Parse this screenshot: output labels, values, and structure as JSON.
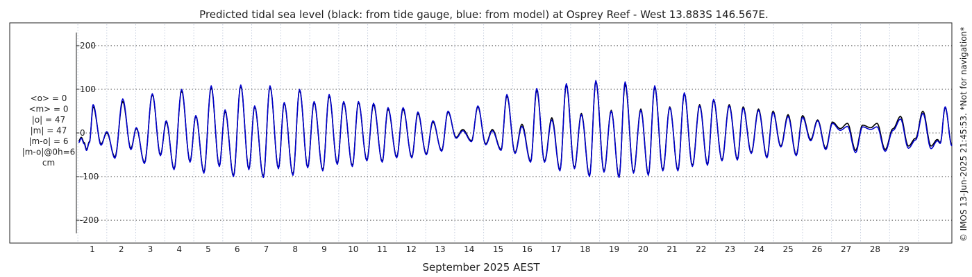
{
  "chart_data": {
    "type": "line",
    "title": "Predicted tidal sea level (black: from tide gauge, blue: from model) at Osprey Reef - West 13.883S 146.567E.",
    "xlabel": "September 2025 AEST",
    "ylabel": "",
    "x_unit": "day of September 2025",
    "xlim": [
      0.45,
      30.65
    ],
    "ylim": [
      -230,
      230
    ],
    "yticks": [
      -200,
      -100,
      0,
      100,
      200
    ],
    "xticks": [
      1,
      2,
      3,
      4,
      5,
      6,
      7,
      8,
      9,
      10,
      11,
      12,
      13,
      14,
      15,
      16,
      17,
      18,
      19,
      20,
      21,
      22,
      23,
      24,
      25,
      26,
      27,
      28,
      29
    ],
    "grid": true,
    "stats": [
      "<o> = 0",
      "<m> = 0",
      "|o| = 47",
      "|m| = 47",
      "|m-o| = 6",
      "|m-o|@0h=6",
      "cm"
    ],
    "side_note": "© IMOS 13-Jun-2025 21:45:53. *Not for navigation*",
    "series": [
      {
        "name": "black: from tide gauge",
        "color": "#000000",
        "peaks": [
          [
            0.53,
            -18
          ],
          [
            0.62,
            -10
          ],
          [
            0.72,
            -22
          ],
          [
            0.8,
            -38
          ],
          [
            0.9,
            -20
          ],
          [
            1.03,
            60
          ],
          [
            1.3,
            -25
          ],
          [
            1.5,
            0
          ],
          [
            1.78,
            -55
          ],
          [
            2.05,
            72
          ],
          [
            2.33,
            -35
          ],
          [
            2.52,
            10
          ],
          [
            2.8,
            -68
          ],
          [
            3.07,
            88
          ],
          [
            3.35,
            -50
          ],
          [
            3.55,
            25
          ],
          [
            3.82,
            -82
          ],
          [
            4.08,
            97
          ],
          [
            4.37,
            -65
          ],
          [
            4.57,
            38
          ],
          [
            4.85,
            -90
          ],
          [
            5.1,
            105
          ],
          [
            5.38,
            -75
          ],
          [
            5.58,
            50
          ],
          [
            5.87,
            -98
          ],
          [
            6.12,
            108
          ],
          [
            6.4,
            -82
          ],
          [
            6.6,
            60
          ],
          [
            6.9,
            -100
          ],
          [
            7.13,
            106
          ],
          [
            7.42,
            -80
          ],
          [
            7.62,
            68
          ],
          [
            7.92,
            -95
          ],
          [
            8.15,
            98
          ],
          [
            8.43,
            -78
          ],
          [
            8.65,
            70
          ],
          [
            8.95,
            -85
          ],
          [
            9.17,
            85
          ],
          [
            9.45,
            -70
          ],
          [
            9.67,
            70
          ],
          [
            9.97,
            -75
          ],
          [
            10.18,
            70
          ],
          [
            10.47,
            -62
          ],
          [
            10.7,
            65
          ],
          [
            11.0,
            -65
          ],
          [
            11.2,
            55
          ],
          [
            11.5,
            -55
          ],
          [
            11.72,
            55
          ],
          [
            12.02,
            -55
          ],
          [
            12.23,
            45
          ],
          [
            12.52,
            -48
          ],
          [
            12.75,
            25
          ],
          [
            13.05,
            -40
          ],
          [
            13.27,
            48
          ],
          [
            13.55,
            -10
          ],
          [
            13.78,
            8
          ],
          [
            14.08,
            -18
          ],
          [
            14.3,
            60
          ],
          [
            14.57,
            -25
          ],
          [
            14.8,
            8
          ],
          [
            15.1,
            -38
          ],
          [
            15.3,
            85
          ],
          [
            15.58,
            -45
          ],
          [
            15.82,
            20
          ],
          [
            16.12,
            -65
          ],
          [
            16.33,
            98
          ],
          [
            16.6,
            -65
          ],
          [
            16.85,
            35
          ],
          [
            17.13,
            -85
          ],
          [
            17.35,
            110
          ],
          [
            17.63,
            -80
          ],
          [
            17.87,
            45
          ],
          [
            18.15,
            -98
          ],
          [
            18.37,
            118
          ],
          [
            18.65,
            -88
          ],
          [
            18.9,
            52
          ],
          [
            19.17,
            -100
          ],
          [
            19.38,
            112
          ],
          [
            19.67,
            -90
          ],
          [
            19.92,
            55
          ],
          [
            20.18,
            -95
          ],
          [
            20.4,
            105
          ],
          [
            20.68,
            -85
          ],
          [
            20.92,
            60
          ],
          [
            21.2,
            -85
          ],
          [
            21.42,
            90
          ],
          [
            21.7,
            -75
          ],
          [
            21.95,
            65
          ],
          [
            22.22,
            -72
          ],
          [
            22.43,
            75
          ],
          [
            22.72,
            -62
          ],
          [
            22.97,
            65
          ],
          [
            23.25,
            -60
          ],
          [
            23.45,
            60
          ],
          [
            23.73,
            -45
          ],
          [
            23.98,
            55
          ],
          [
            24.27,
            -55
          ],
          [
            24.48,
            50
          ],
          [
            24.75,
            -30
          ],
          [
            25.0,
            42
          ],
          [
            25.28,
            -50
          ],
          [
            25.5,
            40
          ],
          [
            25.78,
            -15
          ],
          [
            26.02,
            30
          ],
          [
            26.3,
            -35
          ],
          [
            26.53,
            25
          ],
          [
            26.8,
            10
          ],
          [
            27.05,
            22
          ],
          [
            27.33,
            -40
          ],
          [
            27.57,
            18
          ],
          [
            27.85,
            12
          ],
          [
            28.07,
            22
          ],
          [
            28.35,
            -38
          ],
          [
            28.62,
            10
          ],
          [
            28.88,
            38
          ],
          [
            29.15,
            -30
          ],
          [
            29.4,
            -12
          ],
          [
            29.65,
            50
          ],
          [
            29.93,
            -30
          ],
          [
            30.15,
            -15
          ],
          [
            30.25,
            -22
          ],
          [
            30.42,
            58
          ],
          [
            30.65,
            -28
          ]
        ]
      },
      {
        "name": "blue: from model",
        "color": "#0000cc",
        "peaks": [
          [
            0.53,
            -22
          ],
          [
            0.62,
            -12
          ],
          [
            0.72,
            -25
          ],
          [
            0.8,
            -40
          ],
          [
            0.9,
            -22
          ],
          [
            1.03,
            65
          ],
          [
            1.3,
            -28
          ],
          [
            1.5,
            3
          ],
          [
            1.78,
            -58
          ],
          [
            2.05,
            78
          ],
          [
            2.33,
            -38
          ],
          [
            2.52,
            12
          ],
          [
            2.8,
            -70
          ],
          [
            3.07,
            90
          ],
          [
            3.35,
            -52
          ],
          [
            3.55,
            28
          ],
          [
            3.82,
            -84
          ],
          [
            4.08,
            100
          ],
          [
            4.37,
            -67
          ],
          [
            4.57,
            40
          ],
          [
            4.85,
            -92
          ],
          [
            5.1,
            108
          ],
          [
            5.38,
            -77
          ],
          [
            5.58,
            53
          ],
          [
            5.87,
            -100
          ],
          [
            6.12,
            110
          ],
          [
            6.4,
            -84
          ],
          [
            6.6,
            62
          ],
          [
            6.9,
            -102
          ],
          [
            7.13,
            108
          ],
          [
            7.42,
            -82
          ],
          [
            7.62,
            70
          ],
          [
            7.92,
            -97
          ],
          [
            8.15,
            100
          ],
          [
            8.43,
            -80
          ],
          [
            8.65,
            72
          ],
          [
            8.95,
            -87
          ],
          [
            9.17,
            88
          ],
          [
            9.45,
            -72
          ],
          [
            9.67,
            72
          ],
          [
            9.97,
            -77
          ],
          [
            10.18,
            72
          ],
          [
            10.47,
            -64
          ],
          [
            10.7,
            68
          ],
          [
            11.0,
            -67
          ],
          [
            11.2,
            58
          ],
          [
            11.5,
            -57
          ],
          [
            11.72,
            58
          ],
          [
            12.02,
            -57
          ],
          [
            12.23,
            48
          ],
          [
            12.52,
            -50
          ],
          [
            12.75,
            28
          ],
          [
            13.05,
            -42
          ],
          [
            13.27,
            50
          ],
          [
            13.55,
            -12
          ],
          [
            13.78,
            5
          ],
          [
            14.08,
            -20
          ],
          [
            14.3,
            62
          ],
          [
            14.57,
            -27
          ],
          [
            14.8,
            5
          ],
          [
            15.1,
            -40
          ],
          [
            15.3,
            88
          ],
          [
            15.58,
            -47
          ],
          [
            15.82,
            15
          ],
          [
            16.12,
            -67
          ],
          [
            16.33,
            102
          ],
          [
            16.6,
            -67
          ],
          [
            16.85,
            30
          ],
          [
            17.13,
            -87
          ],
          [
            17.35,
            113
          ],
          [
            17.63,
            -82
          ],
          [
            17.87,
            42
          ],
          [
            18.15,
            -100
          ],
          [
            18.37,
            120
          ],
          [
            18.65,
            -90
          ],
          [
            18.9,
            50
          ],
          [
            19.17,
            -102
          ],
          [
            19.38,
            117
          ],
          [
            19.67,
            -92
          ],
          [
            19.92,
            52
          ],
          [
            20.18,
            -97
          ],
          [
            20.4,
            108
          ],
          [
            20.68,
            -87
          ],
          [
            20.92,
            58
          ],
          [
            21.2,
            -87
          ],
          [
            21.42,
            92
          ],
          [
            21.7,
            -77
          ],
          [
            21.95,
            62
          ],
          [
            22.22,
            -74
          ],
          [
            22.43,
            77
          ],
          [
            22.72,
            -64
          ],
          [
            22.97,
            62
          ],
          [
            23.25,
            -62
          ],
          [
            23.45,
            57
          ],
          [
            23.73,
            -47
          ],
          [
            23.98,
            52
          ],
          [
            24.27,
            -57
          ],
          [
            24.48,
            47
          ],
          [
            24.75,
            -32
          ],
          [
            25.0,
            38
          ],
          [
            25.28,
            -52
          ],
          [
            25.5,
            36
          ],
          [
            25.78,
            -18
          ],
          [
            26.02,
            28
          ],
          [
            26.3,
            -38
          ],
          [
            26.53,
            22
          ],
          [
            26.8,
            6
          ],
          [
            27.05,
            15
          ],
          [
            27.33,
            -45
          ],
          [
            27.57,
            14
          ],
          [
            27.85,
            8
          ],
          [
            28.07,
            14
          ],
          [
            28.35,
            -42
          ],
          [
            28.62,
            6
          ],
          [
            28.88,
            32
          ],
          [
            29.15,
            -35
          ],
          [
            29.4,
            -16
          ],
          [
            29.65,
            45
          ],
          [
            29.93,
            -36
          ],
          [
            30.15,
            -18
          ],
          [
            30.25,
            -24
          ],
          [
            30.42,
            60
          ],
          [
            30.65,
            -30
          ]
        ]
      }
    ]
  }
}
